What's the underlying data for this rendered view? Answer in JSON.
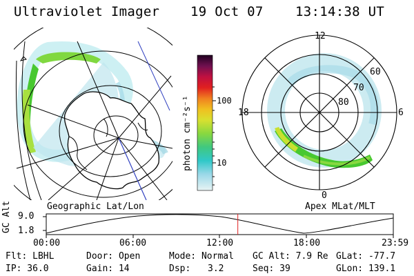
{
  "header": {
    "instrument": "Ultraviolet Imager",
    "date": "19 Oct 07",
    "time": "13:14:38 UT"
  },
  "colorbar": {
    "unit_label": "photon cm⁻²s⁻¹",
    "ticks": [
      "100",
      "10"
    ]
  },
  "left_panel": {
    "caption": "Geographic Lat/Lon"
  },
  "right_panel": {
    "caption": "Apex MLat/MLT",
    "mlt_labels": {
      "top": "12",
      "left": "18",
      "right": "6",
      "bottom": "0"
    },
    "lat_labels": [
      "60",
      "70",
      "80"
    ]
  },
  "altitude_plot": {
    "ylabel": "GC Alt",
    "yticks": [
      "9.0",
      "1.8"
    ],
    "xticks": [
      "00:00",
      "06:00",
      "12:00",
      "18:00",
      "23:59"
    ],
    "current_time_fraction": 0.552
  },
  "footer": {
    "flt": "Flt: LBHL",
    "ip": "IP: 36.0",
    "door": "Door: Open",
    "gain": "Gain: 14",
    "mode": "Mode: Normal",
    "dsp_label": "Dsp:",
    "dsp_value": "3.2",
    "gcalt": "GC Alt: 7.9 Re",
    "seq": "Seq: 39",
    "glat": "GLat: -77.7",
    "glon": "GLon: 139.1"
  },
  "colors": {
    "aurora_green": "#48c830",
    "aurora_yellowgreen": "#a8e040",
    "noise_cyan": "#a8dce8",
    "marker_red": "#e02020",
    "meridian_blue": "#3040c0"
  }
}
